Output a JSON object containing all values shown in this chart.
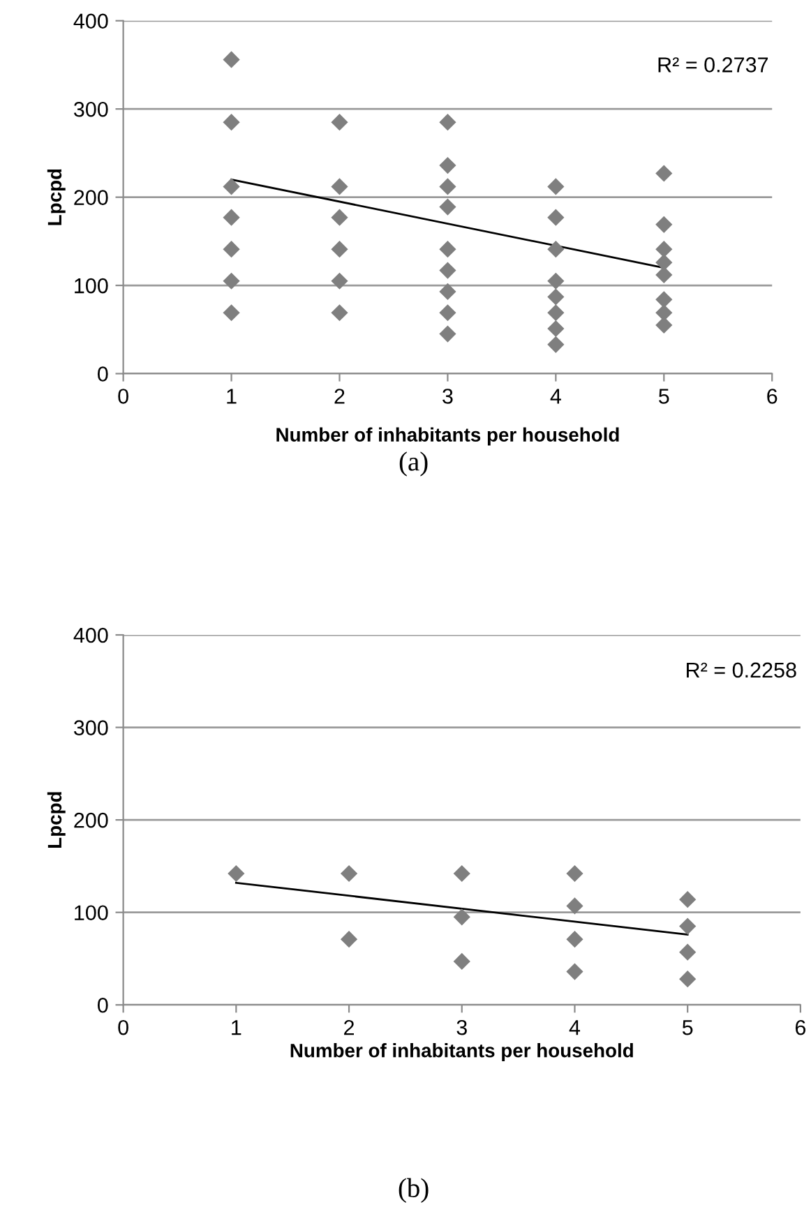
{
  "chart_data": [
    {
      "type": "scatter",
      "xlabel": "Number of inhabitants per household",
      "ylabel": "Lpcpd",
      "xlim": [
        0,
        6
      ],
      "xticks": [
        0,
        1,
        2,
        3,
        4,
        5,
        6
      ],
      "ylim": [
        0,
        400
      ],
      "yticks": [
        0,
        100,
        200,
        300,
        400
      ],
      "grid": "y",
      "series": [
        {
          "marker": "diamond",
          "color": "#7f7f7f",
          "x": [
            1,
            1,
            1,
            1,
            1,
            1,
            1,
            2,
            2,
            2,
            2,
            2,
            2,
            3,
            3,
            3,
            3,
            3,
            3,
            3,
            3,
            3,
            4,
            4,
            4,
            4,
            4,
            4,
            4,
            4,
            5,
            5,
            5,
            5,
            5,
            5,
            5,
            5
          ],
          "values": [
            356,
            285,
            212,
            177,
            141,
            105,
            69,
            285,
            212,
            177,
            141,
            105,
            69,
            285,
            236,
            212,
            189,
            141,
            117,
            93,
            69,
            45,
            212,
            177,
            141,
            105,
            87,
            69,
            51,
            33,
            227,
            169,
            141,
            126,
            112,
            84,
            69,
            55
          ]
        },
        {
          "type": "line",
          "marker": "none",
          "color": "#000000",
          "x": [
            1,
            5
          ],
          "values": [
            220,
            120
          ]
        }
      ],
      "annotations": [
        "R² = 0.2737",
        "(a)"
      ]
    },
    {
      "type": "scatter",
      "xlabel": "Number of inhabitants per household",
      "ylabel": "Lpcpd",
      "xlim": [
        0,
        6
      ],
      "xticks": [
        0,
        1,
        2,
        3,
        4,
        5,
        6
      ],
      "ylim": [
        0,
        400
      ],
      "yticks": [
        0,
        100,
        200,
        300,
        400
      ],
      "grid": "y",
      "series": [
        {
          "marker": "diamond",
          "color": "#7f7f7f",
          "x": [
            1,
            2,
            2,
            3,
            3,
            3,
            4,
            4,
            4,
            4,
            5,
            5,
            5,
            5
          ],
          "values": [
            142,
            142,
            71,
            142,
            95,
            47,
            142,
            107,
            71,
            36,
            114,
            85,
            57,
            28
          ]
        },
        {
          "type": "line",
          "marker": "none",
          "color": "#000000",
          "x": [
            1,
            5
          ],
          "values": [
            132,
            76
          ]
        }
      ],
      "annotations": [
        "R² = 0.2258",
        "(b)"
      ]
    }
  ]
}
